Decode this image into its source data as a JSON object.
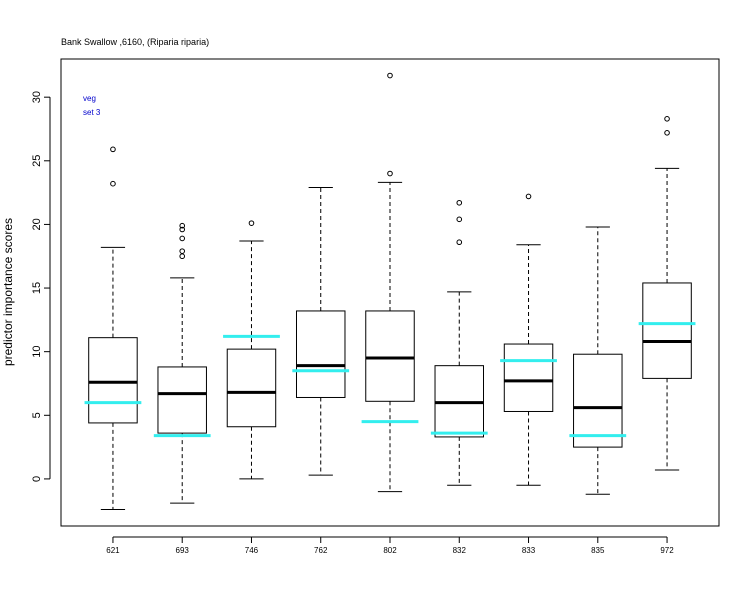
{
  "chart_data": {
    "type": "boxplot",
    "title": "Bank Swallow ,6160, (Riparia riparia)",
    "xlabel": "",
    "ylabel": "predictor importance scores",
    "ylim": [
      -3.7,
      33.0
    ],
    "yticks": [
      0,
      5,
      10,
      15,
      20,
      25,
      30
    ],
    "annotations": [
      "veg",
      "set 3"
    ],
    "colors": {
      "box": "#000000",
      "median": "#000000",
      "reference": "#33eeee",
      "annotation": "#0000cc"
    },
    "categories": [
      "621",
      "693",
      "746",
      "762",
      "802",
      "832",
      "833",
      "835",
      "972"
    ],
    "boxes": [
      {
        "category": "621",
        "whisker_low": -2.4,
        "q1": 4.4,
        "median": 7.6,
        "q3": 11.1,
        "whisker_high": 18.2,
        "outliers": [
          23.2,
          25.9
        ],
        "reference": 6.0
      },
      {
        "category": "693",
        "whisker_low": -1.9,
        "q1": 3.6,
        "median": 6.7,
        "q3": 8.8,
        "whisker_high": 15.8,
        "outliers": [
          17.5,
          17.9,
          18.9,
          19.6,
          19.9
        ],
        "reference": 3.4
      },
      {
        "category": "746",
        "whisker_low": 0.0,
        "q1": 4.1,
        "median": 6.8,
        "q3": 10.2,
        "whisker_high": 18.7,
        "outliers": [
          20.1
        ],
        "reference": 11.2
      },
      {
        "category": "762",
        "whisker_low": 0.3,
        "q1": 6.4,
        "median": 8.9,
        "q3": 13.2,
        "whisker_high": 22.9,
        "outliers": [],
        "reference": 8.5
      },
      {
        "category": "802",
        "whisker_low": -1.0,
        "q1": 6.1,
        "median": 9.5,
        "q3": 13.2,
        "whisker_high": 23.3,
        "outliers": [
          24.0,
          31.7
        ],
        "reference": 4.5
      },
      {
        "category": "832",
        "whisker_low": -0.5,
        "q1": 3.3,
        "median": 6.0,
        "q3": 8.9,
        "whisker_high": 14.7,
        "outliers": [
          18.6,
          20.4,
          21.7
        ],
        "reference": 3.6
      },
      {
        "category": "833",
        "whisker_low": -0.5,
        "q1": 5.3,
        "median": 7.7,
        "q3": 10.6,
        "whisker_high": 18.4,
        "outliers": [
          22.2
        ],
        "reference": 9.3
      },
      {
        "category": "835",
        "whisker_low": -1.2,
        "q1": 2.5,
        "median": 5.6,
        "q3": 9.8,
        "whisker_high": 19.8,
        "outliers": [],
        "reference": 3.4
      },
      {
        "category": "972",
        "whisker_low": 0.7,
        "q1": 7.9,
        "median": 10.8,
        "q3": 15.4,
        "whisker_high": 24.4,
        "outliers": [
          27.2,
          28.3
        ],
        "reference": 12.2
      }
    ]
  }
}
